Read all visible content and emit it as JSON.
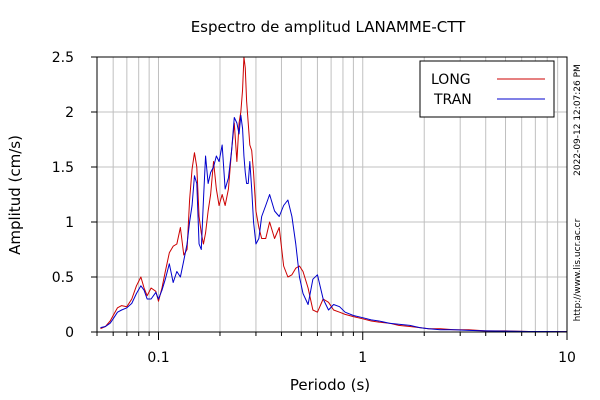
{
  "chart_data": {
    "type": "line",
    "title": "Espectro de amplitud LANAMME-CTT",
    "xlabel": "Periodo (s)",
    "ylabel": "Amplitud (cm/s)",
    "x_scale": "log",
    "xlim": [
      0.05,
      10
    ],
    "ylim": [
      0,
      2.5
    ],
    "x_ticks": [
      {
        "value": 0.1,
        "label": "0.1"
      },
      {
        "value": 1,
        "label": "1"
      },
      {
        "value": 10,
        "label": "10"
      }
    ],
    "y_ticks": [
      {
        "value": 0,
        "label": "0"
      },
      {
        "value": 0.5,
        "label": "0.5"
      },
      {
        "value": 1,
        "label": "1"
      },
      {
        "value": 1.5,
        "label": "1.5"
      },
      {
        "value": 2,
        "label": "2"
      },
      {
        "value": 2.5,
        "label": "2.5"
      }
    ],
    "grid": true,
    "legend_position": "top-right",
    "series": [
      {
        "name": "LONG",
        "color": "#cc0000",
        "x": [
          0.052,
          0.055,
          0.058,
          0.06,
          0.063,
          0.066,
          0.07,
          0.074,
          0.078,
          0.082,
          0.085,
          0.088,
          0.092,
          0.097,
          0.1,
          0.104,
          0.108,
          0.113,
          0.118,
          0.123,
          0.128,
          0.133,
          0.138,
          0.142,
          0.146,
          0.15,
          0.154,
          0.158,
          0.162,
          0.166,
          0.17,
          0.175,
          0.18,
          0.186,
          0.192,
          0.198,
          0.205,
          0.212,
          0.22,
          0.228,
          0.235,
          0.242,
          0.248,
          0.253,
          0.258,
          0.262,
          0.266,
          0.27,
          0.275,
          0.28,
          0.286,
          0.292,
          0.3,
          0.31,
          0.32,
          0.335,
          0.35,
          0.37,
          0.39,
          0.41,
          0.43,
          0.45,
          0.47,
          0.49,
          0.51,
          0.54,
          0.57,
          0.6,
          0.64,
          0.68,
          0.72,
          0.77,
          0.82,
          0.9,
          1.0,
          1.1,
          1.2,
          1.35,
          1.5,
          1.7,
          1.9,
          2.1,
          2.4,
          2.8,
          3.3,
          4.0,
          5.0,
          6.5,
          8.0,
          10.0
        ],
        "values": [
          0.03,
          0.05,
          0.1,
          0.15,
          0.22,
          0.24,
          0.23,
          0.3,
          0.42,
          0.5,
          0.4,
          0.33,
          0.4,
          0.37,
          0.28,
          0.4,
          0.55,
          0.72,
          0.78,
          0.8,
          0.95,
          0.7,
          0.75,
          1.2,
          1.48,
          1.63,
          1.5,
          1.05,
          0.9,
          0.8,
          0.9,
          1.1,
          1.25,
          1.55,
          1.3,
          1.15,
          1.25,
          1.15,
          1.3,
          1.65,
          1.9,
          1.55,
          1.9,
          2.0,
          2.2,
          2.5,
          2.4,
          2.1,
          1.9,
          1.7,
          1.65,
          1.45,
          1.1,
          0.95,
          0.85,
          0.85,
          1.0,
          0.85,
          0.95,
          0.6,
          0.5,
          0.52,
          0.58,
          0.6,
          0.55,
          0.4,
          0.2,
          0.18,
          0.3,
          0.27,
          0.2,
          0.18,
          0.16,
          0.14,
          0.12,
          0.1,
          0.09,
          0.08,
          0.06,
          0.05,
          0.04,
          0.03,
          0.03,
          0.02,
          0.02,
          0.01,
          0.01,
          0.005,
          0.004,
          0.003
        ]
      },
      {
        "name": "TRAN",
        "color": "#0000cc",
        "x": [
          0.052,
          0.055,
          0.058,
          0.06,
          0.063,
          0.066,
          0.07,
          0.074,
          0.078,
          0.082,
          0.085,
          0.088,
          0.092,
          0.097,
          0.1,
          0.104,
          0.108,
          0.113,
          0.118,
          0.123,
          0.128,
          0.133,
          0.138,
          0.142,
          0.146,
          0.15,
          0.154,
          0.158,
          0.162,
          0.166,
          0.17,
          0.175,
          0.18,
          0.186,
          0.192,
          0.198,
          0.205,
          0.212,
          0.22,
          0.228,
          0.235,
          0.242,
          0.248,
          0.253,
          0.258,
          0.262,
          0.266,
          0.27,
          0.275,
          0.28,
          0.286,
          0.292,
          0.3,
          0.31,
          0.32,
          0.335,
          0.35,
          0.37,
          0.39,
          0.41,
          0.43,
          0.45,
          0.47,
          0.49,
          0.51,
          0.54,
          0.57,
          0.6,
          0.64,
          0.68,
          0.72,
          0.77,
          0.82,
          0.9,
          1.0,
          1.1,
          1.2,
          1.35,
          1.5,
          1.7,
          1.9,
          2.1,
          2.4,
          2.8,
          3.3,
          4.0,
          5.0,
          6.5,
          8.0,
          10.0
        ],
        "values": [
          0.04,
          0.05,
          0.08,
          0.12,
          0.18,
          0.2,
          0.22,
          0.26,
          0.35,
          0.42,
          0.38,
          0.3,
          0.3,
          0.36,
          0.3,
          0.38,
          0.48,
          0.62,
          0.45,
          0.55,
          0.5,
          0.65,
          0.8,
          1.0,
          1.15,
          1.42,
          1.35,
          0.8,
          0.75,
          1.2,
          1.6,
          1.35,
          1.45,
          1.5,
          1.6,
          1.55,
          1.7,
          1.3,
          1.4,
          1.65,
          1.95,
          1.9,
          1.8,
          1.97,
          1.85,
          1.6,
          1.45,
          1.35,
          1.35,
          1.55,
          1.3,
          1.0,
          0.8,
          0.85,
          1.05,
          1.15,
          1.25,
          1.1,
          1.05,
          1.15,
          1.2,
          1.05,
          0.8,
          0.5,
          0.35,
          0.25,
          0.48,
          0.52,
          0.3,
          0.2,
          0.25,
          0.23,
          0.18,
          0.15,
          0.13,
          0.11,
          0.1,
          0.08,
          0.07,
          0.06,
          0.04,
          0.03,
          0.02,
          0.02,
          0.015,
          0.01,
          0.008,
          0.005,
          0.004,
          0.003
        ]
      }
    ]
  },
  "side_labels": {
    "timestamp": "2022-09-12 12:07:26 PM",
    "url": "http://www.lis.ucr.ac.cr"
  },
  "colors": {
    "grid": "#c0c0c0",
    "axes": "#000000",
    "background": "#ffffff"
  }
}
